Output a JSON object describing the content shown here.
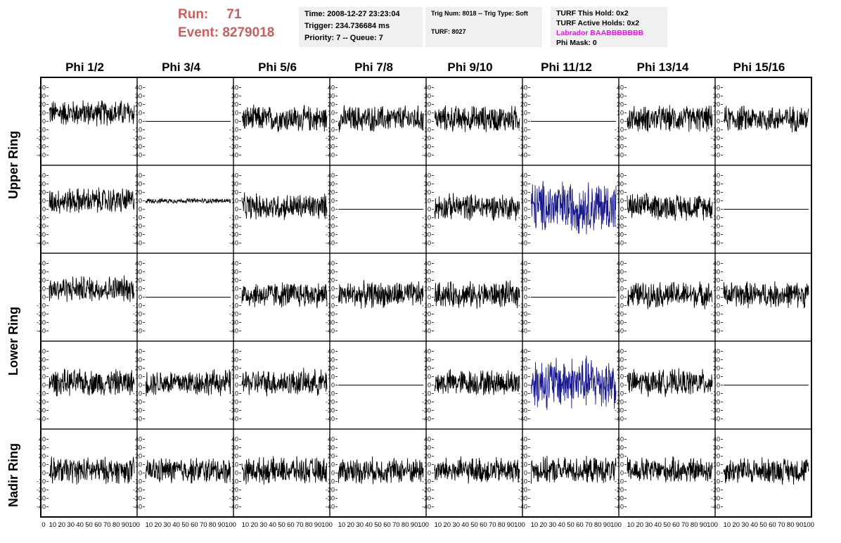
{
  "header": {
    "run_label": "Run:",
    "run_value": "71",
    "event_label": "Event:",
    "event_value": "8279018"
  },
  "time_box": {
    "time": "Time: 2008-12-27 23:23:04",
    "trigger": "Trigger: 234.736684 ms",
    "priority": "Priority: 7 -- Queue: 7"
  },
  "trig_box": {
    "trig_line": "Trig Num: 8018 -- Trig Type: Soft",
    "turf_line": "TURF: 8027"
  },
  "turf_box": {
    "this_hold": "TURF This Hold: 0x2",
    "active_holds": "TURF Active Holds: 0x2",
    "labrador": "Labrador BAABBBBBBB",
    "phi_mask": "Phi Mask: 0"
  },
  "columns": [
    "Phi 1/2",
    "Phi 3/4",
    "Phi 5/6",
    "Phi 7/8",
    "Phi 9/10",
    "Phi 11/12",
    "Phi 13/14",
    "Phi 15/16"
  ],
  "ring_labels": [
    "Upper Ring",
    "Lower Ring",
    "Nadir Ring"
  ],
  "y_ticks": [
    40,
    30,
    20,
    10,
    0,
    -10,
    -20,
    -30,
    -40
  ],
  "x_ticks": [
    "0",
    "10",
    "20",
    "30",
    "40",
    "50",
    "60",
    "70",
    "80",
    "90",
    "100"
  ],
  "y_range": [
    -47,
    47
  ],
  "x_range": [
    0,
    100
  ],
  "colors": {
    "trace": "#000000",
    "highlight": "#1a1a8c",
    "run_text": "#cd5c5c",
    "labrador": "#ff00ff"
  },
  "panel_modes": [
    [
      "noisy-offset",
      "flat",
      "noisy",
      "noisy",
      "noisy",
      "flat",
      "noisy",
      "noisy"
    ],
    [
      "noisy-offset",
      "small",
      "noisy",
      "flat",
      "noisy",
      "blue",
      "noisy",
      "flat"
    ],
    [
      "noisy-offset",
      "flat",
      "noisy",
      "noisy",
      "noisy",
      "flat",
      "noisy",
      "noisy"
    ],
    [
      "noisy",
      "noisy",
      "noisy",
      "flat",
      "noisy",
      "blue",
      "noisy",
      "flat"
    ],
    [
      "noisy",
      "noisy",
      "noisy",
      "noisy",
      "noisy",
      "noisy",
      "noisy",
      "noisy"
    ]
  ]
}
